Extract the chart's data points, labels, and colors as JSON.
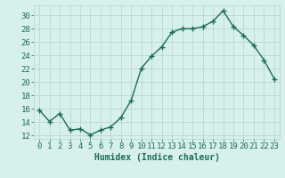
{
  "x": [
    0,
    1,
    2,
    3,
    4,
    5,
    6,
    7,
    8,
    9,
    10,
    11,
    12,
    13,
    14,
    15,
    16,
    17,
    18,
    19,
    20,
    21,
    22,
    23
  ],
  "y": [
    15.8,
    14.1,
    15.3,
    12.8,
    13.0,
    12.1,
    12.8,
    13.3,
    14.7,
    17.3,
    22.1,
    23.9,
    25.3,
    27.5,
    28.0,
    28.0,
    28.3,
    29.1,
    30.7,
    28.3,
    27.0,
    25.5,
    23.3,
    20.5
  ],
  "line_color": "#1a6b5a",
  "marker": "+",
  "marker_size": 4,
  "marker_lw": 1.0,
  "bg_color": "#d8f0ec",
  "grid_color": "#b8d8d0",
  "xlabel": "Humidex (Indice chaleur)",
  "xlim": [
    -0.5,
    23.5
  ],
  "ylim": [
    11.5,
    31.5
  ],
  "yticks": [
    12,
    14,
    16,
    18,
    20,
    22,
    24,
    26,
    28,
    30
  ],
  "xticks": [
    0,
    1,
    2,
    3,
    4,
    5,
    6,
    7,
    8,
    9,
    10,
    11,
    12,
    13,
    14,
    15,
    16,
    17,
    18,
    19,
    20,
    21,
    22,
    23
  ],
  "xlabel_fontsize": 7,
  "tick_fontsize": 6.5,
  "line_width": 1.0
}
